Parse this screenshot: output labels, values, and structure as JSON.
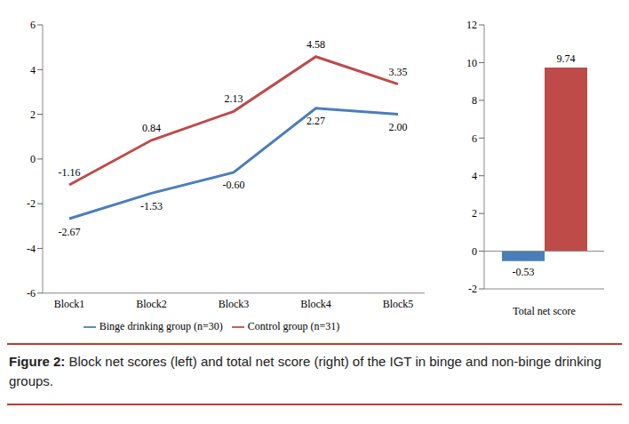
{
  "chart_data": [
    {
      "type": "line",
      "categories": [
        "Block1",
        "Block2",
        "Block3",
        "Block4",
        "Block5"
      ],
      "series": [
        {
          "name": "Binge drinking group (n=30)",
          "color": "#4a7ebb",
          "values": [
            -2.67,
            -1.53,
            -0.6,
            2.27,
            2.0
          ],
          "value_labels": [
            "-2.67",
            "-1.53",
            "-0.60",
            "2.27",
            "2.00"
          ]
        },
        {
          "name": "Control group (n=31)",
          "color": "#be4b48",
          "values": [
            -1.16,
            0.84,
            2.13,
            4.58,
            3.35
          ],
          "value_labels": [
            "-1.16",
            "0.84",
            "2.13",
            "4.58",
            "3.35"
          ]
        }
      ],
      "ylim": [
        -6,
        6
      ],
      "yticks": [
        -6,
        -4,
        -2,
        0,
        2,
        4,
        6
      ],
      "grid": false,
      "legend": "bottom",
      "data_labels": true
    },
    {
      "type": "bar",
      "categories": [
        "Total net score"
      ],
      "series": [
        {
          "color": "#4a7ebb",
          "values": [
            -0.53
          ]
        },
        {
          "color": "#be4b48",
          "values": [
            9.74
          ]
        }
      ],
      "ylim": [
        -2,
        12
      ],
      "yticks": [
        -2,
        0,
        2,
        4,
        6,
        8,
        10,
        12
      ],
      "grid": false,
      "data_labels": true
    }
  ],
  "figure": {
    "label": "Figure 2:",
    "text": "Block net scores (left) and total net score (right) of the IGT in binge and non-binge drinking groups."
  }
}
